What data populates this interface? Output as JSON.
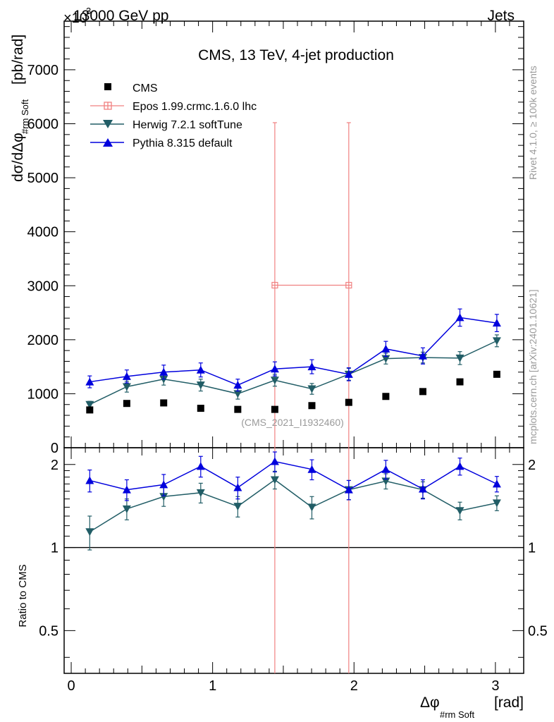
{
  "header": {
    "left": "13000 GeV pp",
    "right": "Jets",
    "exponent_prefix": "×10",
    "exponent": "3"
  },
  "side_labels": {
    "rivet": "Rivet 4.1.0, ≥ 100k events",
    "mcplots": "mcplots.cern.ch [arXiv:2401.10621]"
  },
  "chart_data": [
    {
      "type": "scatter",
      "title": "CMS, 13 TeV, 4-jet production",
      "watermark": "(CMS_2021_I1932460)",
      "ylabel": "dσ/dΔφ",
      "ylabel_sub": "#rm Soft",
      "ylabel_unit": "[pb/rad]",
      "xlabel": "Δφ",
      "xlabel_sub": "#rm Soft",
      "xlabel_unit": "[rad]",
      "xlim": [
        -0.05,
        3.2
      ],
      "ylim": [
        0,
        7900
      ],
      "y_scale_note": "values in pb/rad",
      "y_ticks": [
        "0",
        "1000",
        "2000",
        "3000",
        "4000",
        "5000",
        "6000",
        "7000"
      ],
      "x": [
        0.131,
        0.393,
        0.654,
        0.916,
        1.178,
        1.44,
        1.702,
        1.963,
        2.225,
        2.487,
        2.749,
        3.01
      ],
      "series": [
        {
          "name": "CMS",
          "marker": "square",
          "color": "#000000",
          "values": [
            700,
            820,
            830,
            730,
            710,
            710,
            780,
            840,
            950,
            1040,
            1220,
            1360
          ],
          "errors": [
            0,
            0,
            0,
            0,
            0,
            0,
            0,
            0,
            0,
            0,
            0,
            0
          ]
        },
        {
          "name": "Epos 1.99.crmc.1.6.0 lhc",
          "marker": "open-cross",
          "color": "#f08080",
          "x": [
            1.44,
            1.963
          ],
          "values": [
            3010,
            3010
          ],
          "errors": [
            3010,
            3010
          ]
        },
        {
          "name": "Herwig 7.2.1 softTune",
          "marker": "triangle-down",
          "color": "#215d66",
          "values": [
            800,
            1130,
            1270,
            1160,
            1000,
            1250,
            1090,
            1360,
            1650,
            1670,
            1660,
            1980
          ],
          "errors": [
            60,
            100,
            110,
            110,
            100,
            110,
            100,
            110,
            100,
            100,
            120,
            110
          ]
        },
        {
          "name": "Pythia 8.315 default",
          "marker": "triangle-up",
          "color": "#0000dd",
          "values": [
            1220,
            1320,
            1400,
            1440,
            1160,
            1460,
            1500,
            1360,
            1830,
            1700,
            2410,
            2310
          ],
          "errors": [
            110,
            120,
            130,
            130,
            110,
            130,
            130,
            120,
            140,
            150,
            160,
            160
          ]
        }
      ]
    },
    {
      "type": "scatter",
      "ylabel": "Ratio to CMS",
      "xlim": [
        -0.05,
        3.2
      ],
      "ylim": [
        0.35,
        2.3
      ],
      "y_scale": "log",
      "y_ticks": [
        "0.5",
        "1",
        "2"
      ],
      "x_ticks": [
        "0",
        "1",
        "2",
        "3"
      ],
      "x": [
        0.131,
        0.393,
        0.654,
        0.916,
        1.178,
        1.44,
        1.702,
        1.963,
        2.225,
        2.487,
        2.749,
        3.01
      ],
      "series": [
        {
          "name": "Herwig 7.2.1 softTune",
          "color": "#215d66",
          "marker": "triangle-down",
          "values": [
            1.14,
            1.38,
            1.53,
            1.58,
            1.41,
            1.76,
            1.4,
            1.62,
            1.74,
            1.62,
            1.36,
            1.45
          ],
          "errors": [
            0.16,
            0.12,
            0.12,
            0.13,
            0.12,
            0.13,
            0.13,
            0.13,
            0.11,
            0.11,
            0.1,
            0.09
          ]
        },
        {
          "name": "Pythia 8.315 default",
          "color": "#0000dd",
          "marker": "triangle-up",
          "values": [
            1.75,
            1.62,
            1.69,
            1.97,
            1.65,
            2.05,
            1.92,
            1.62,
            1.92,
            1.63,
            1.97,
            1.7
          ],
          "errors": [
            0.16,
            0.14,
            0.15,
            0.17,
            0.15,
            0.17,
            0.16,
            0.13,
            0.15,
            0.13,
            0.14,
            0.11
          ]
        }
      ]
    }
  ]
}
